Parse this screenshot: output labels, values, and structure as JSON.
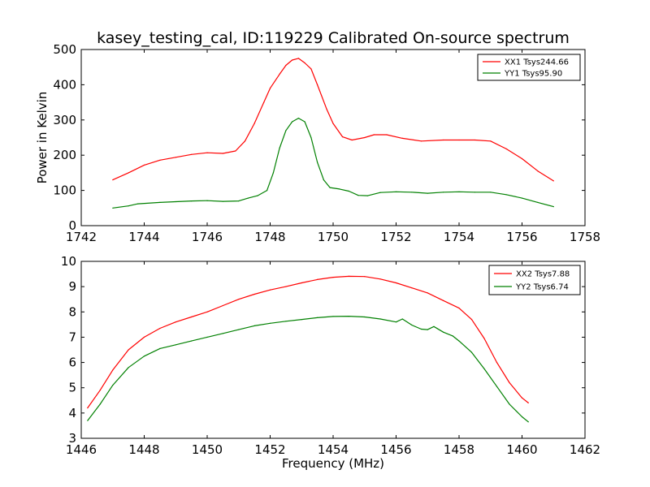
{
  "figure": {
    "title": "kasey_testing_cal, ID:119229 Calibrated On-source spectrum"
  },
  "chart_data": [
    {
      "type": "line",
      "title": "kasey_testing_cal, ID:119229 Calibrated On-source spectrum",
      "xlabel": "",
      "ylabel": "Power in Kelvin",
      "xlim": [
        1742,
        1758
      ],
      "ylim": [
        0,
        500
      ],
      "xticks": [
        1742,
        1744,
        1746,
        1748,
        1750,
        1752,
        1754,
        1756,
        1758
      ],
      "yticks": [
        0,
        100,
        200,
        300,
        400,
        500
      ],
      "grid": false,
      "legend_position": "top-right",
      "series": [
        {
          "name": "XX1 Tsys244.66",
          "color": "#ff0000",
          "x": [
            1743.0,
            1743.5,
            1744.0,
            1744.5,
            1745.0,
            1745.5,
            1746.0,
            1746.5,
            1746.9,
            1747.2,
            1747.5,
            1747.8,
            1748.0,
            1748.3,
            1748.5,
            1748.7,
            1748.9,
            1749.1,
            1749.3,
            1749.5,
            1749.8,
            1750.0,
            1750.3,
            1750.6,
            1751.0,
            1751.3,
            1751.7,
            1752.2,
            1752.8,
            1753.5,
            1754.0,
            1754.5,
            1755.0,
            1755.5,
            1756.0,
            1756.5,
            1757.0
          ],
          "y": [
            130,
            150,
            172,
            186,
            194,
            202,
            207,
            205,
            212,
            240,
            290,
            350,
            390,
            430,
            455,
            470,
            475,
            462,
            445,
            400,
            330,
            290,
            252,
            243,
            250,
            258,
            258,
            248,
            240,
            243,
            243,
            243,
            240,
            218,
            190,
            155,
            127
          ]
        },
        {
          "name": "YY1 Tsys95.90",
          "color": "#008000",
          "x": [
            1743.0,
            1743.5,
            1743.8,
            1744.5,
            1745.0,
            1745.5,
            1746.0,
            1746.5,
            1747.0,
            1747.3,
            1747.6,
            1747.9,
            1748.1,
            1748.3,
            1748.5,
            1748.7,
            1748.9,
            1749.1,
            1749.3,
            1749.5,
            1749.7,
            1749.9,
            1750.2,
            1750.5,
            1750.8,
            1751.1,
            1751.5,
            1752.0,
            1752.5,
            1753.0,
            1753.5,
            1754.0,
            1754.5,
            1755.0,
            1755.5,
            1756.0,
            1756.5,
            1757.0
          ],
          "y": [
            50,
            56,
            62,
            66,
            68,
            70,
            71,
            69,
            70,
            78,
            85,
            100,
            150,
            220,
            270,
            295,
            305,
            295,
            250,
            180,
            130,
            108,
            104,
            98,
            86,
            85,
            94,
            96,
            95,
            92,
            95,
            96,
            95,
            95,
            88,
            78,
            66,
            54
          ]
        }
      ]
    },
    {
      "type": "line",
      "title": "",
      "xlabel": "Frequency (MHz)",
      "ylabel": "",
      "xlim": [
        1446,
        1462
      ],
      "ylim": [
        3,
        10
      ],
      "xticks": [
        1446,
        1448,
        1450,
        1452,
        1454,
        1456,
        1458,
        1460,
        1462
      ],
      "yticks": [
        3,
        4,
        5,
        6,
        7,
        8,
        9,
        10
      ],
      "grid": false,
      "legend_position": "top-right",
      "series": [
        {
          "name": "XX2 Tsys7.88",
          "color": "#ff0000",
          "x": [
            1446.2,
            1446.6,
            1447.0,
            1447.5,
            1448.0,
            1448.5,
            1449.0,
            1449.5,
            1450.0,
            1450.5,
            1451.0,
            1451.5,
            1452.0,
            1452.5,
            1453.0,
            1453.5,
            1454.0,
            1454.5,
            1455.0,
            1455.5,
            1456.0,
            1456.5,
            1457.0,
            1457.5,
            1458.0,
            1458.4,
            1458.8,
            1459.2,
            1459.6,
            1460.0,
            1460.2
          ],
          "y": [
            4.2,
            4.9,
            5.7,
            6.5,
            7.0,
            7.35,
            7.6,
            7.8,
            8.0,
            8.25,
            8.5,
            8.7,
            8.87,
            9.0,
            9.15,
            9.28,
            9.37,
            9.41,
            9.4,
            9.3,
            9.15,
            8.95,
            8.75,
            8.45,
            8.15,
            7.7,
            6.95,
            6.0,
            5.2,
            4.6,
            4.4
          ]
        },
        {
          "name": "YY2 Tsys6.74",
          "color": "#008000",
          "x": [
            1446.2,
            1446.6,
            1447.0,
            1447.5,
            1448.0,
            1448.5,
            1449.0,
            1449.5,
            1450.0,
            1450.5,
            1451.0,
            1451.5,
            1452.0,
            1452.5,
            1453.0,
            1453.5,
            1454.0,
            1454.5,
            1455.0,
            1455.5,
            1456.0,
            1456.2,
            1456.5,
            1456.8,
            1457.0,
            1457.2,
            1457.5,
            1457.8,
            1458.0,
            1458.4,
            1458.8,
            1459.2,
            1459.6,
            1460.0,
            1460.2
          ],
          "y": [
            3.7,
            4.35,
            5.1,
            5.8,
            6.25,
            6.55,
            6.7,
            6.85,
            7.0,
            7.15,
            7.3,
            7.45,
            7.55,
            7.63,
            7.7,
            7.77,
            7.82,
            7.83,
            7.8,
            7.72,
            7.6,
            7.72,
            7.48,
            7.32,
            7.3,
            7.42,
            7.2,
            7.05,
            6.85,
            6.4,
            5.75,
            5.05,
            4.35,
            3.85,
            3.65
          ]
        }
      ]
    }
  ]
}
